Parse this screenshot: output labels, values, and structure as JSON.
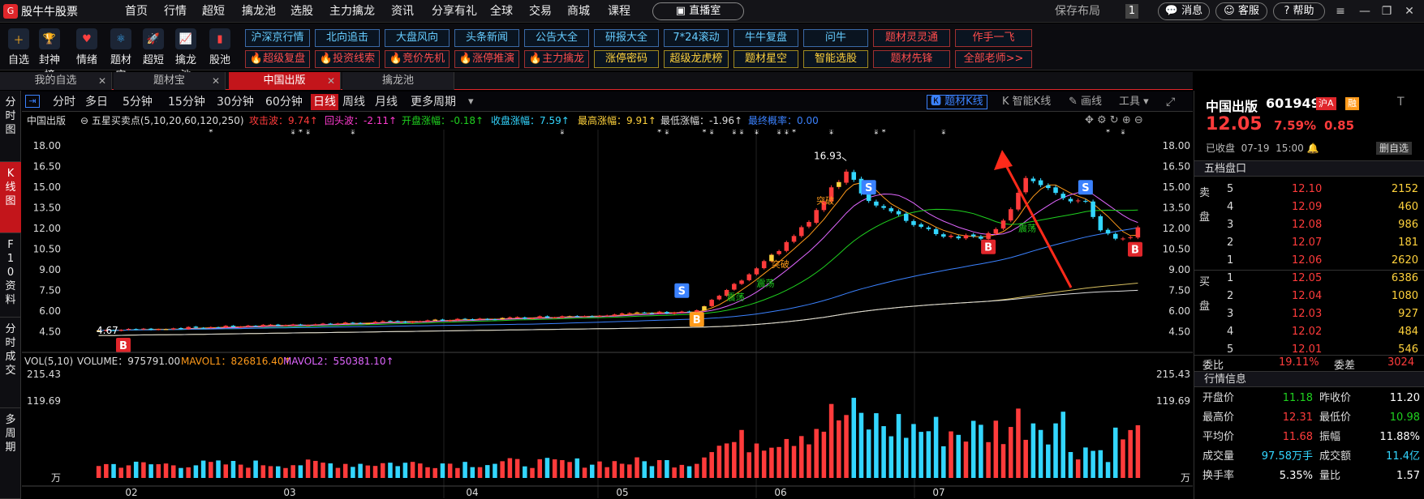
{
  "app": {
    "title": "股牛牛股票",
    "logo_glyph": "G"
  },
  "menu": [
    "首页",
    "行情",
    "超短",
    "擒龙池",
    "选股",
    "主力擒龙",
    "资讯",
    "分享有礼",
    "全球",
    "交易",
    "商城",
    "课程"
  ],
  "live_button": "直播室",
  "top_right": {
    "save_layout": "保存布局",
    "page_num": "1",
    "message": "消息",
    "service": "客服",
    "help": "帮助"
  },
  "toolbar_icons": [
    "自选",
    "封神榜",
    "情绪",
    "题材宝",
    "超短",
    "擒龙池",
    "股池"
  ],
  "quick_row1": [
    {
      "label": "沪深京行情",
      "style": "blue"
    },
    {
      "label": "北向追击",
      "style": "blue"
    },
    {
      "label": "大盘风向",
      "style": "blue"
    },
    {
      "label": "头条新闻",
      "style": "blue"
    },
    {
      "label": "公告大全",
      "style": "blue"
    },
    {
      "label": "研报大全",
      "style": "blue"
    },
    {
      "label": "7*24滚动",
      "style": "blue"
    },
    {
      "label": "牛牛复盘",
      "style": "blue"
    },
    {
      "label": "问牛",
      "style": "blue"
    },
    {
      "label": "题材灵灵通",
      "style": "red"
    },
    {
      "label": "作手一飞",
      "style": "red"
    }
  ],
  "quick_row2": [
    {
      "label": "🔥超级复盘",
      "style": "red"
    },
    {
      "label": "🔥投资线索",
      "style": "red"
    },
    {
      "label": "🔥竞价先机",
      "style": "red"
    },
    {
      "label": "🔥涨停推演",
      "style": "red"
    },
    {
      "label": "🔥主力擒龙",
      "style": "red"
    },
    {
      "label": "涨停密码",
      "style": "yel"
    },
    {
      "label": "超级龙虎榜",
      "style": "yel"
    },
    {
      "label": "题材星空",
      "style": "yel"
    },
    {
      "label": "智能选股",
      "style": "yel"
    },
    {
      "label": "题材先锋",
      "style": "red"
    },
    {
      "label": "全部老师>>",
      "style": "red"
    }
  ],
  "tabs": [
    {
      "label": "我的自选",
      "active": false
    },
    {
      "label": "题材宝",
      "active": false
    },
    {
      "label": "中国出版",
      "active": true
    },
    {
      "label": "擒龙池",
      "active": false
    }
  ],
  "side_buttons": [
    "分时图",
    "K线图",
    "F10资料",
    "分时成交",
    "多周期"
  ],
  "periods": [
    "分时",
    "多日",
    "5分钟",
    "15分钟",
    "30分钟",
    "60分钟",
    "日线",
    "周线",
    "月线",
    "更多周期"
  ],
  "period_active": "日线",
  "chart_tools": {
    "theme_k": "题材K线",
    "smart_k": "智能K线",
    "draw": "画线",
    "tools": "工具"
  },
  "indicator_info": {
    "name": "中国出版",
    "indicator": "五星买卖点(5,10,20,60,120,250)",
    "items": [
      {
        "label": "攻击波：9.74",
        "arrow": "↑",
        "color": "#ff3b3b"
      },
      {
        "label": "回头波：-2.11",
        "arrow": "↑",
        "color": "#ff3bd0"
      },
      {
        "label": "开盘涨幅：-0.18",
        "arrow": "↑",
        "color": "#1fd11f"
      },
      {
        "label": "收盘涨幅：7.59",
        "arrow": "↑",
        "color": "#33d6ff"
      },
      {
        "label": "最高涨幅：9.91",
        "arrow": "↑",
        "color": "#ffd23c"
      },
      {
        "label": "最低涨幅：-1.96",
        "arrow": "↑",
        "color": "#ddd"
      },
      {
        "label": "最终概率：0.00",
        "arrow": "",
        "color": "#3b82ff"
      }
    ]
  },
  "vol_info": {
    "name": "VOL(5,10)",
    "volume": "VOLUME：975791.00",
    "mavol1": "MAVOL1：826816.40",
    "mavol2": "MAVOL2：550381.10"
  },
  "chart_data": {
    "type": "candlestick",
    "y_ticks": [
      18.0,
      16.5,
      15.0,
      13.5,
      12.0,
      10.5,
      9.0,
      7.5,
      6.0,
      4.5
    ],
    "ylim": [
      3.6,
      18.6
    ],
    "x_labels": [
      "02",
      "03",
      "04",
      "05",
      "06",
      "07"
    ],
    "annotations": {
      "high": "16.93",
      "low": "4.67",
      "breakout": "突破",
      "oscillate": "震荡",
      "buy": "B",
      "sell": "S"
    },
    "vol_ticks": [
      "215.43",
      "119.69",
      "万"
    ],
    "vol_max": 215.43,
    "candle_count": 140
  },
  "quote": {
    "name": "中国出版",
    "code": "601949",
    "tag1": "沪A",
    "tag2": "融",
    "price": "12.05",
    "pct": "7.59%",
    "chg": "0.85",
    "status": "已收盘",
    "date": "07-19",
    "time": "15:00",
    "delete_btn": "删自选",
    "five_head": "五档盘口",
    "sell_label": "卖盘",
    "buy_label": "买盘",
    "sells": [
      {
        "n": "5",
        "p": "12.10",
        "v": "2152"
      },
      {
        "n": "4",
        "p": "12.09",
        "v": "460"
      },
      {
        "n": "3",
        "p": "12.08",
        "v": "986"
      },
      {
        "n": "2",
        "p": "12.07",
        "v": "181"
      },
      {
        "n": "1",
        "p": "12.06",
        "v": "2620"
      }
    ],
    "buys": [
      {
        "n": "1",
        "p": "12.05",
        "v": "6386"
      },
      {
        "n": "2",
        "p": "12.04",
        "v": "1080"
      },
      {
        "n": "3",
        "p": "12.03",
        "v": "927"
      },
      {
        "n": "4",
        "p": "12.02",
        "v": "484"
      },
      {
        "n": "5",
        "p": "12.01",
        "v": "546"
      }
    ],
    "weibi_label": "委比",
    "weibi": "19.11%",
    "weicha_label": "委差",
    "weicha": "3024",
    "info_head": "行情信息",
    "stats": [
      [
        {
          "l": "开盘价",
          "v": "11.18",
          "c": "grn"
        },
        {
          "l": "昨收价",
          "v": "11.20",
          "c": "wht"
        }
      ],
      [
        {
          "l": "最高价",
          "v": "12.31",
          "c": "red"
        },
        {
          "l": "最低价",
          "v": "10.98",
          "c": "grn"
        }
      ],
      [
        {
          "l": "平均价",
          "v": "11.68",
          "c": "red"
        },
        {
          "l": "振幅",
          "v": "11.88%",
          "c": "wht"
        }
      ],
      [
        {
          "l": "成交量",
          "v": "97.58万手",
          "c": "cyn"
        },
        {
          "l": "成交额",
          "v": "11.4亿",
          "c": "cyn"
        }
      ],
      [
        {
          "l": "换手率",
          "v": "5.35%",
          "c": "wht"
        },
        {
          "l": "量比",
          "v": "1.57",
          "c": "wht"
        }
      ]
    ]
  },
  "colors": {
    "up": "#ff3b3b",
    "down": "#33d6ff",
    "brand": "#c3151b",
    "annot": "#ff2a1a"
  }
}
